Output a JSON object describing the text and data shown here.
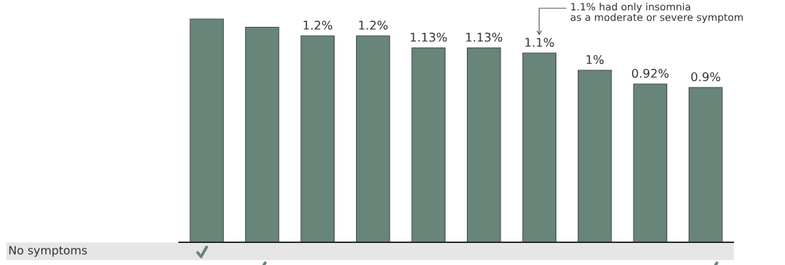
{
  "chart_data": {
    "type": "bar",
    "categories": [
      null,
      null,
      null,
      null,
      null,
      null,
      null,
      null,
      null,
      null
    ],
    "values": [
      1.3,
      1.25,
      1.2,
      1.2,
      1.13,
      1.13,
      1.1,
      1.0,
      0.92,
      0.9
    ],
    "value_labels": [
      null,
      null,
      "1.2%",
      "1.2%",
      "1.13%",
      "1.13%",
      "1.1%",
      "1%",
      "0.92%",
      "0.9%"
    ],
    "color": "#678578",
    "ylim": [
      0,
      1.3
    ],
    "tick_labels": false,
    "grid": false,
    "annotations": [
      "1.1% had only insomnia\nas a moderate or severe symptom",
      "No symptoms"
    ]
  }
}
